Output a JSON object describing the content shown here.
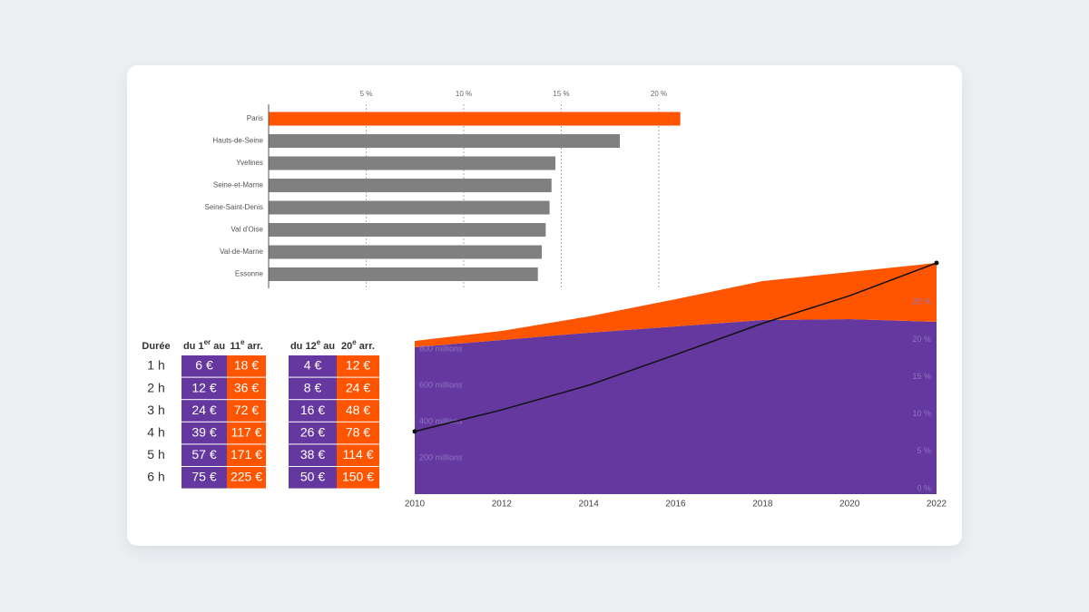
{
  "chart_data": [
    {
      "type": "bar",
      "orientation": "horizontal",
      "categories": [
        "Paris",
        "Hauts-de-Seine",
        "Yvelines",
        "Seine-et-Marne",
        "Seine-Saint-Denis",
        "Val d'Oise",
        "Val-de-Marne",
        "Essonne"
      ],
      "values": [
        21.1,
        18.0,
        14.7,
        14.5,
        14.4,
        14.2,
        14.0,
        13.8
      ],
      "colors": [
        "#ff5500",
        "#808080",
        "#808080",
        "#808080",
        "#808080",
        "#808080",
        "#808080",
        "#808080"
      ],
      "xlim": [
        0,
        22
      ],
      "xticks": [
        {
          "value": 5,
          "label": "5 %"
        },
        {
          "value": 10,
          "label": "10 %"
        },
        {
          "value": 15,
          "label": "15 %"
        },
        {
          "value": 20,
          "label": "20 %"
        }
      ],
      "grid": true
    },
    {
      "type": "area",
      "stacked": true,
      "x": [
        2010,
        2012,
        2014,
        2016,
        2018,
        2020,
        2022
      ],
      "xlim": [
        2010,
        2022
      ],
      "xticks": [
        2010,
        2012,
        2014,
        2016,
        2018,
        2020,
        2022
      ],
      "ylim": [
        0,
        1275
      ],
      "yticks": [
        {
          "value": 200,
          "label": "200 millions"
        },
        {
          "value": 400,
          "label": "400 millions"
        },
        {
          "value": 600,
          "label": "600 millions"
        },
        {
          "value": 800,
          "label": "800 millions"
        }
      ],
      "y2lim": [
        0,
        31
      ],
      "y2ticks": [
        {
          "value": 0,
          "label": "0 %"
        },
        {
          "value": 5,
          "label": "5 %"
        },
        {
          "value": 10,
          "label": "10 %"
        },
        {
          "value": 15,
          "label": "15 %"
        },
        {
          "value": 20,
          "label": "20 %"
        },
        {
          "value": 25,
          "label": "25 %"
        }
      ],
      "series": [
        {
          "color": "#64389f",
          "values": [
            810,
            850,
            890,
            925,
            960,
            965,
            950
          ]
        },
        {
          "color": "#ff5500",
          "values": [
            35,
            50,
            90,
            150,
            215,
            260,
            325
          ]
        },
        {
          "type": "line",
          "axis": "y2",
          "color": "#111111",
          "values": [
            8.4,
            11.3,
            14.6,
            18.7,
            22.9,
            26.6,
            31.0
          ]
        }
      ]
    }
  ],
  "table": {
    "duration_header": "Durée",
    "group_headers": [
      [
        "du 1",
        "er",
        " au"
      ],
      [
        "11",
        "e",
        " arr."
      ],
      [
        "du 12",
        "e",
        " au"
      ],
      [
        "20",
        "e",
        " arr."
      ]
    ],
    "rows": [
      [
        "1 h",
        "6 €",
        "18 €",
        "4 €",
        "12 €"
      ],
      [
        "2 h",
        "12 €",
        "36 €",
        "8 €",
        "24 €"
      ],
      [
        "3 h",
        "24 €",
        "72 €",
        "16 €",
        "48 €"
      ],
      [
        "4 h",
        "39 €",
        "117 €",
        "26 €",
        "78 €"
      ],
      [
        "5 h",
        "57 €",
        "171 €",
        "38 €",
        "114 €"
      ],
      [
        "6 h",
        "75 €",
        "225 €",
        "50 €",
        "150 €"
      ]
    ]
  }
}
